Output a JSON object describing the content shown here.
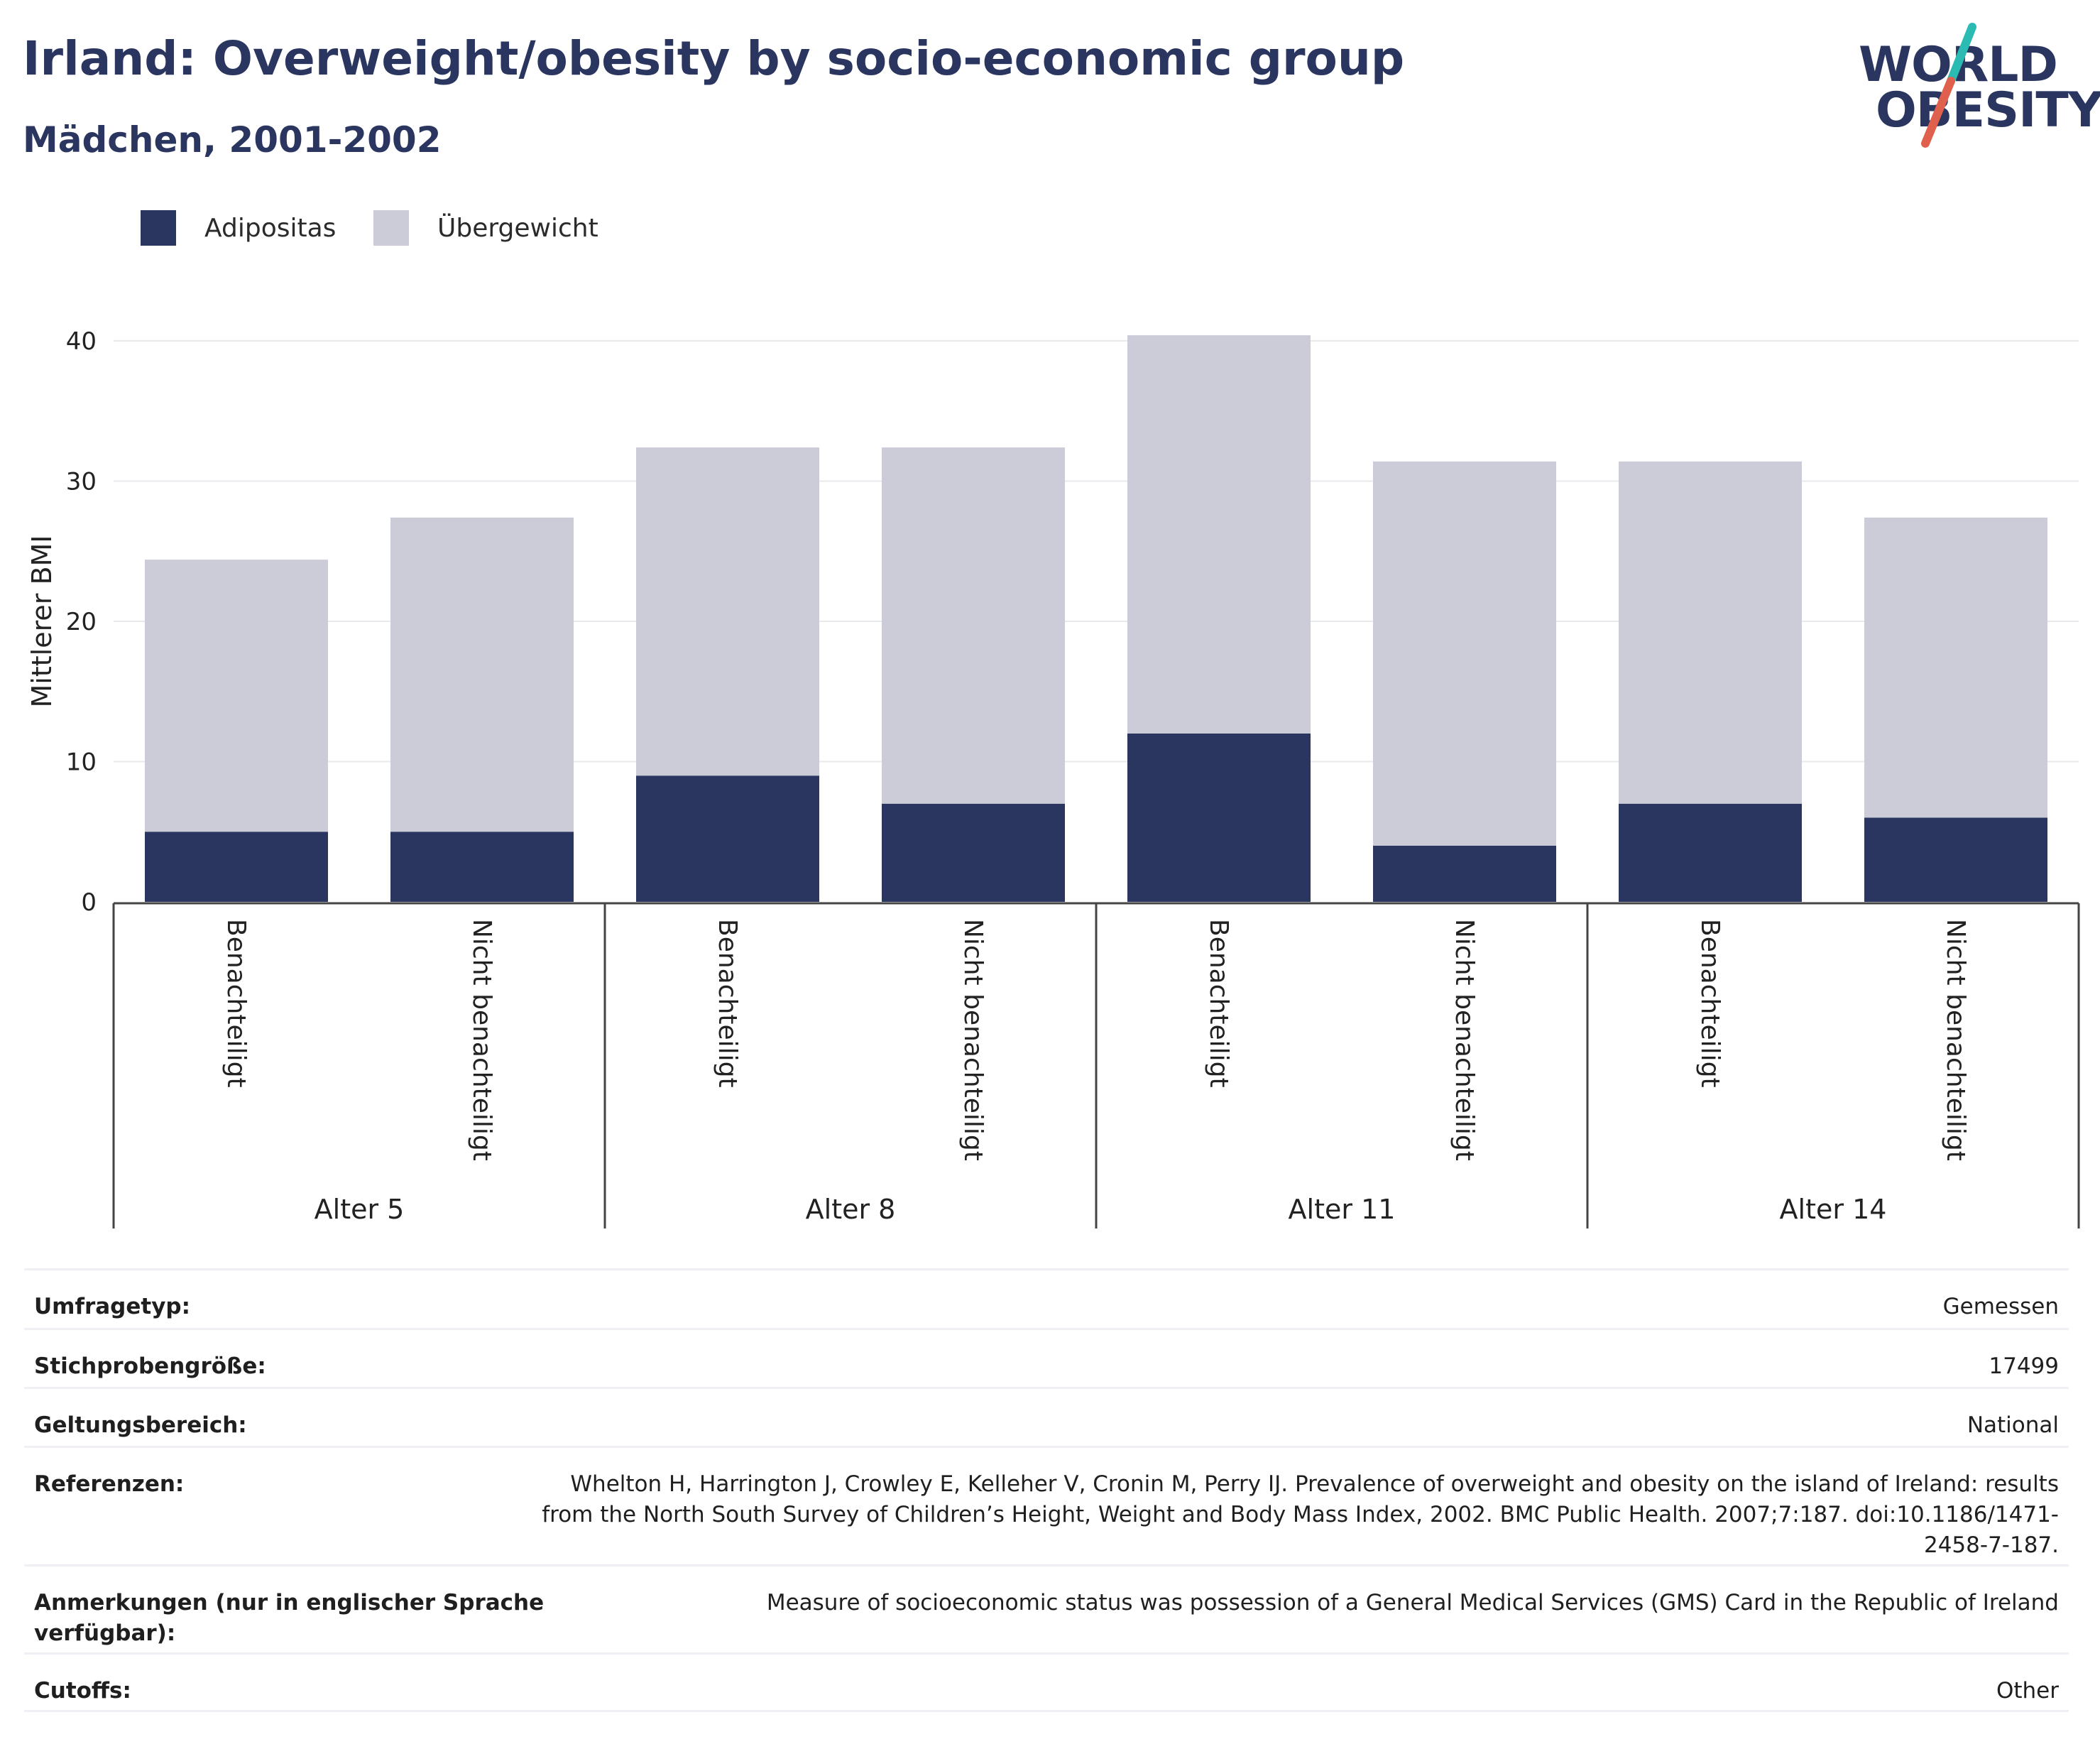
{
  "header": {
    "title": "Irland: Overweight/obesity by socio-economic group",
    "subtitle": "Mädchen, 2001-2002"
  },
  "logo": {
    "line1": "WORLD",
    "line2": "OBESITY",
    "accent_teal": "#2bbbb3",
    "accent_red": "#e0604e"
  },
  "legend": [
    {
      "label": "Adipositas",
      "color": "#2a365f"
    },
    {
      "label": "Übergewicht",
      "color": "#cbccd8"
    }
  ],
  "chart_data": {
    "type": "bar",
    "stacked": true,
    "ylabel": "Mittlerer BMI",
    "ylim": [
      0,
      40
    ],
    "yticks": [
      "0",
      "10",
      "20",
      "30",
      "40"
    ],
    "grid": true,
    "legend_position": "top-left",
    "groups": [
      "Alter 5",
      "Alter 8",
      "Alter 11",
      "Alter 14"
    ],
    "categories": [
      "Benachteiligt",
      "Nicht benachteiligt",
      "Benachteiligt",
      "Nicht benachteiligt",
      "Benachteiligt",
      "Nicht benachteiligt",
      "Benachteiligt",
      "Nicht benachteiligt"
    ],
    "series": [
      {
        "name": "Adipositas",
        "color": "#2a365f",
        "values": [
          5,
          5,
          9,
          7,
          12,
          4,
          7,
          6
        ]
      },
      {
        "name": "Übergewicht",
        "color": "#cbccd8",
        "values": [
          19.4,
          22.4,
          23.4,
          25.4,
          28.4,
          27.4,
          24.4,
          21.4
        ]
      }
    ]
  },
  "meta": [
    {
      "label": "Umfragetyp:",
      "value": "Gemessen"
    },
    {
      "label": "Stichprobengröße:",
      "value": "17499"
    },
    {
      "label": "Geltungsbereich:",
      "value": "National"
    },
    {
      "label": "Referenzen:",
      "value": "Whelton H, Harrington J, Crowley E, Kelleher V, Cronin M, Perry IJ. Prevalence of overweight and obesity on the island of Ireland: results from the North South Survey of Children’s Height, Weight and Body Mass Index, 2002. BMC Public Health. 2007;7:187. doi:10.1186/1471-2458-7-187."
    },
    {
      "label": "Anmerkungen (nur in englischer Sprache verfügbar):",
      "value": "Measure of socioeconomic status was possession of a General Medical Services (GMS) Card in the Republic of Ireland"
    },
    {
      "label": "Cutoffs:",
      "value": "Other"
    }
  ]
}
